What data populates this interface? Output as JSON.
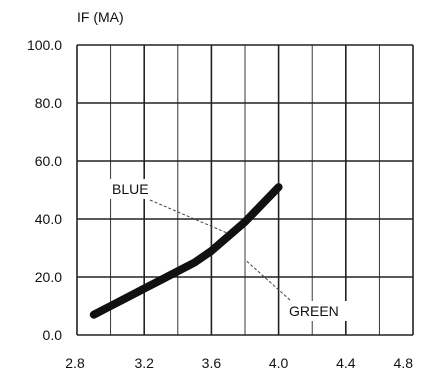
{
  "chart_data": {
    "type": "line",
    "title": "",
    "xlabel": "",
    "ylabel": "IF (MA)",
    "xlim": [
      2.8,
      4.8
    ],
    "ylim": [
      0,
      100
    ],
    "x_ticks": [
      "2.8",
      "3.2",
      "3.6",
      "4.0",
      "4.4",
      "4.8"
    ],
    "y_ticks": [
      "0.0",
      "20.0",
      "40.0",
      "60.0",
      "80.0",
      "100.0"
    ],
    "grid": true,
    "legend": "none",
    "series": [
      {
        "color": "#111111",
        "points": [
          {
            "x": 2.9,
            "y": 7
          },
          {
            "x": 3.0,
            "y": 10
          },
          {
            "x": 3.1,
            "y": 13
          },
          {
            "x": 3.2,
            "y": 16
          },
          {
            "x": 3.3,
            "y": 19
          },
          {
            "x": 3.4,
            "y": 22
          },
          {
            "x": 3.5,
            "y": 25
          },
          {
            "x": 3.6,
            "y": 29
          },
          {
            "x": 3.7,
            "y": 34
          },
          {
            "x": 3.8,
            "y": 39
          },
          {
            "x": 3.9,
            "y": 45
          },
          {
            "x": 4.0,
            "y": 51
          }
        ]
      }
    ],
    "annotations": [
      {
        "text": "BLUE",
        "target": {
          "x": 3.7,
          "y": 35
        }
      },
      {
        "text": "GREEN",
        "target": {
          "x": 3.8,
          "y": 26
        }
      }
    ]
  }
}
